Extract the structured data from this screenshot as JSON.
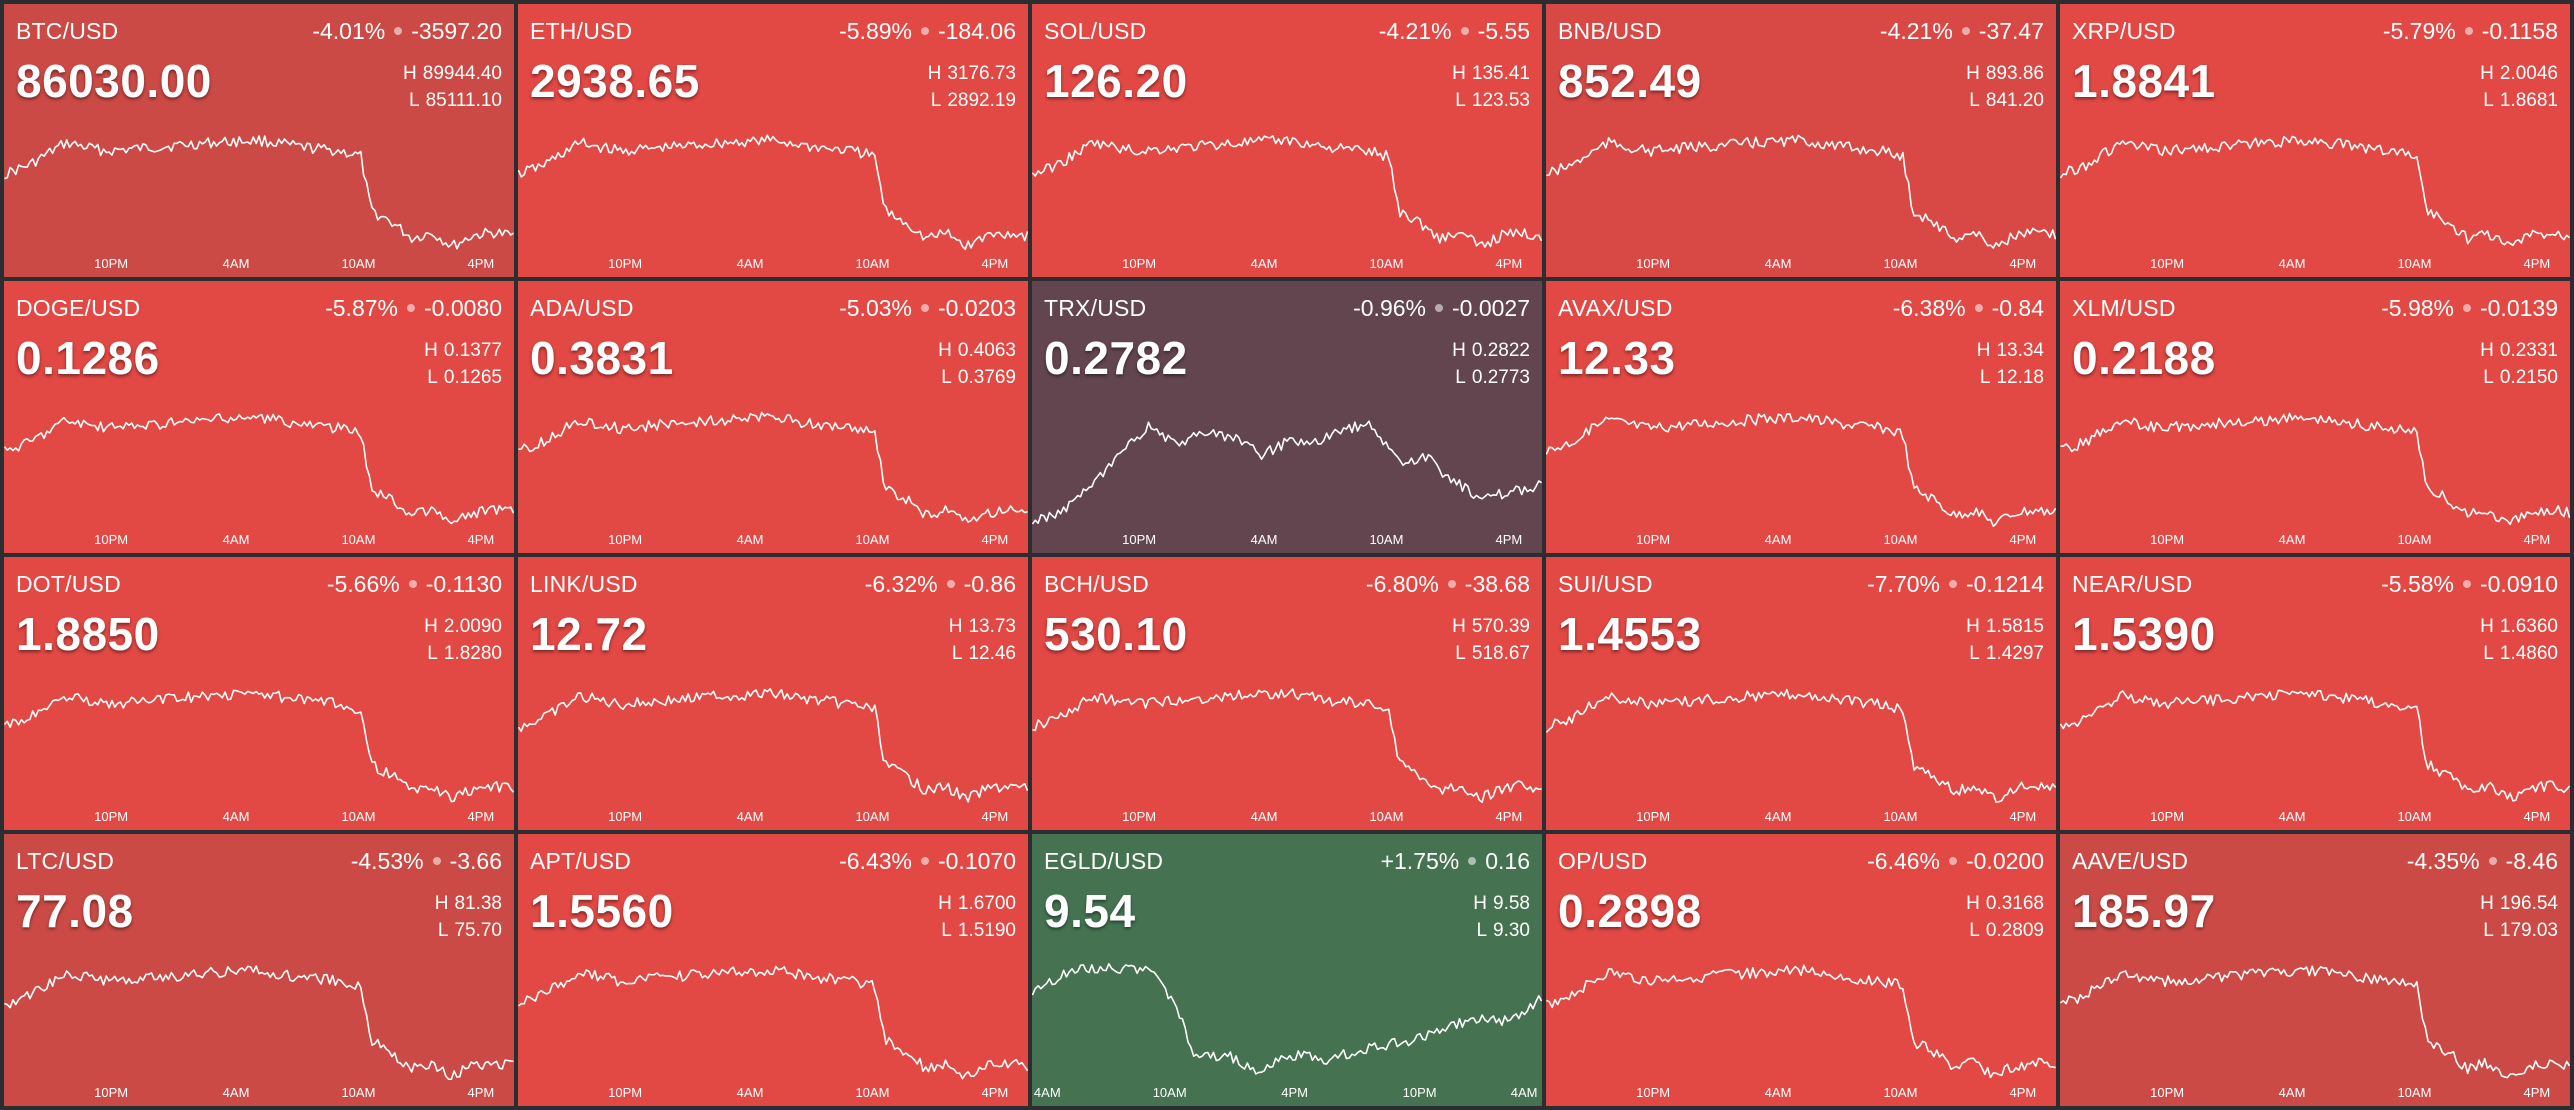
{
  "tiles": [
    {
      "symbol": "BTC/USD",
      "pct": "-4.01%",
      "change": "-3597.20",
      "price": "86030.00",
      "high": "89944.40",
      "low": "85111.10",
      "bg": "#cb4a45",
      "ticks": [
        "10PM",
        "4AM",
        "10AM",
        "4PM"
      ],
      "shape": "A"
    },
    {
      "symbol": "ETH/USD",
      "pct": "-5.89%",
      "change": "-184.06",
      "price": "2938.65",
      "high": "3176.73",
      "low": "2892.19",
      "bg": "#e24844",
      "ticks": [
        "10PM",
        "4AM",
        "10AM",
        "4PM"
      ],
      "shape": "A"
    },
    {
      "symbol": "SOL/USD",
      "pct": "-4.21%",
      "change": "-5.55",
      "price": "126.20",
      "high": "135.41",
      "low": "123.53",
      "bg": "#e24844",
      "ticks": [
        "10PM",
        "4AM",
        "10AM",
        "4PM"
      ],
      "shape": "A"
    },
    {
      "symbol": "BNB/USD",
      "pct": "-4.21%",
      "change": "-37.47",
      "price": "852.49",
      "high": "893.86",
      "low": "841.20",
      "bg": "#d84945",
      "ticks": [
        "10PM",
        "4AM",
        "10AM",
        "4PM"
      ],
      "shape": "A"
    },
    {
      "symbol": "XRP/USD",
      "pct": "-5.79%",
      "change": "-0.1158",
      "price": "1.8841",
      "high": "2.0046",
      "low": "1.8681",
      "bg": "#e24844",
      "ticks": [
        "10PM",
        "4AM",
        "10AM",
        "4PM"
      ],
      "shape": "A"
    },
    {
      "symbol": "DOGE/USD",
      "pct": "-5.87%",
      "change": "-0.0080",
      "price": "0.1286",
      "high": "0.1377",
      "low": "0.1265",
      "bg": "#e24844",
      "ticks": [
        "10PM",
        "4AM",
        "10AM",
        "4PM"
      ],
      "shape": "A"
    },
    {
      "symbol": "ADA/USD",
      "pct": "-5.03%",
      "change": "-0.0203",
      "price": "0.3831",
      "high": "0.4063",
      "low": "0.3769",
      "bg": "#e24844",
      "ticks": [
        "10PM",
        "4AM",
        "10AM",
        "4PM"
      ],
      "shape": "A"
    },
    {
      "symbol": "TRX/USD",
      "pct": "-0.96%",
      "change": "-0.0027",
      "price": "0.2782",
      "high": "0.2822",
      "low": "0.2773",
      "bg": "#634550",
      "ticks": [
        "10PM",
        "4AM",
        "10AM",
        "4PM"
      ],
      "shape": "B"
    },
    {
      "symbol": "AVAX/USD",
      "pct": "-6.38%",
      "change": "-0.84",
      "price": "12.33",
      "high": "13.34",
      "low": "12.18",
      "bg": "#e24844",
      "ticks": [
        "10PM",
        "4AM",
        "10AM",
        "4PM"
      ],
      "shape": "A"
    },
    {
      "symbol": "XLM/USD",
      "pct": "-5.98%",
      "change": "-0.0139",
      "price": "0.2188",
      "high": "0.2331",
      "low": "0.2150",
      "bg": "#e24844",
      "ticks": [
        "10PM",
        "4AM",
        "10AM",
        "4PM"
      ],
      "shape": "A"
    },
    {
      "symbol": "DOT/USD",
      "pct": "-5.66%",
      "change": "-0.1130",
      "price": "1.8850",
      "high": "2.0090",
      "low": "1.8280",
      "bg": "#e24844",
      "ticks": [
        "10PM",
        "4AM",
        "10AM",
        "4PM"
      ],
      "shape": "A"
    },
    {
      "symbol": "LINK/USD",
      "pct": "-6.32%",
      "change": "-0.86",
      "price": "12.72",
      "high": "13.73",
      "low": "12.46",
      "bg": "#e24844",
      "ticks": [
        "10PM",
        "4AM",
        "10AM",
        "4PM"
      ],
      "shape": "A"
    },
    {
      "symbol": "BCH/USD",
      "pct": "-6.80%",
      "change": "-38.68",
      "price": "530.10",
      "high": "570.39",
      "low": "518.67",
      "bg": "#e24844",
      "ticks": [
        "10PM",
        "4AM",
        "10AM",
        "4PM"
      ],
      "shape": "A"
    },
    {
      "symbol": "SUI/USD",
      "pct": "-7.70%",
      "change": "-0.1214",
      "price": "1.4553",
      "high": "1.5815",
      "low": "1.4297",
      "bg": "#e24844",
      "ticks": [
        "10PM",
        "4AM",
        "10AM",
        "4PM"
      ],
      "shape": "A"
    },
    {
      "symbol": "NEAR/USD",
      "pct": "-5.58%",
      "change": "-0.0910",
      "price": "1.5390",
      "high": "1.6360",
      "low": "1.4860",
      "bg": "#e24844",
      "ticks": [
        "10PM",
        "4AM",
        "10AM",
        "4PM"
      ],
      "shape": "A"
    },
    {
      "symbol": "LTC/USD",
      "pct": "-4.53%",
      "change": "-3.66",
      "price": "77.08",
      "high": "81.38",
      "low": "75.70",
      "bg": "#cb4a45",
      "ticks": [
        "10PM",
        "4AM",
        "10AM",
        "4PM"
      ],
      "shape": "A"
    },
    {
      "symbol": "APT/USD",
      "pct": "-6.43%",
      "change": "-0.1070",
      "price": "1.5560",
      "high": "1.6700",
      "low": "1.5190",
      "bg": "#e24844",
      "ticks": [
        "10PM",
        "4AM",
        "10AM",
        "4PM"
      ],
      "shape": "A"
    },
    {
      "symbol": "EGLD/USD",
      "pct": "+1.75%",
      "change": "0.16",
      "price": "9.54",
      "high": "9.58",
      "low": "9.30",
      "bg": "#457352",
      "ticks": [
        "4AM",
        "10AM",
        "4PM",
        "10PM",
        "4AM"
      ],
      "shape": "C"
    },
    {
      "symbol": "OP/USD",
      "pct": "-6.46%",
      "change": "-0.0200",
      "price": "0.2898",
      "high": "0.3168",
      "low": "0.2809",
      "bg": "#e24844",
      "ticks": [
        "10PM",
        "4AM",
        "10AM",
        "4PM"
      ],
      "shape": "A"
    },
    {
      "symbol": "AAVE/USD",
      "pct": "-4.35%",
      "change": "-8.46",
      "price": "185.97",
      "high": "196.54",
      "low": "179.03",
      "bg": "#cb4a45",
      "ticks": [
        "10PM",
        "4AM",
        "10AM",
        "4PM"
      ],
      "shape": "A"
    }
  ],
  "labels": {
    "high_key": "H",
    "low_key": "L"
  }
}
